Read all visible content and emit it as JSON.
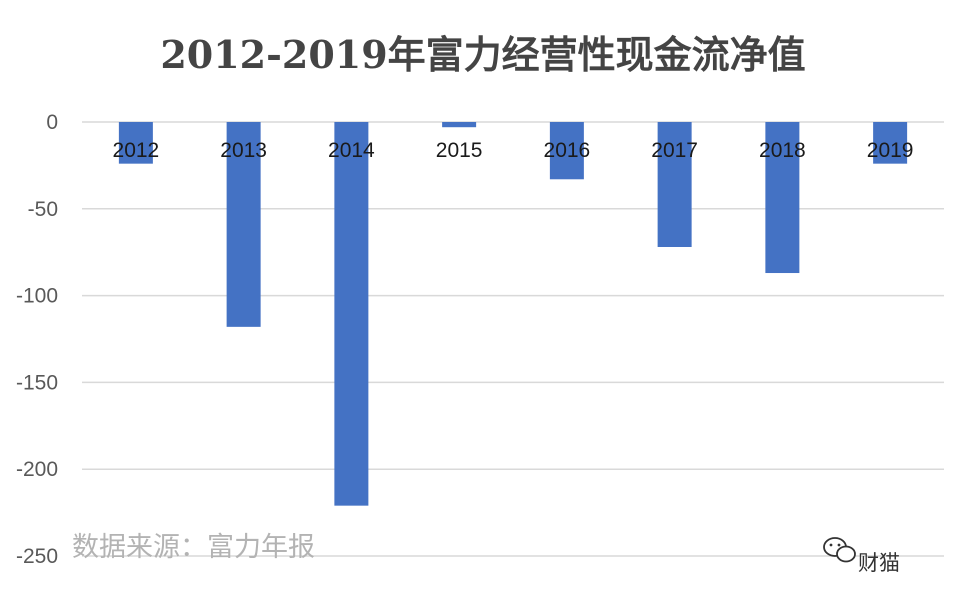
{
  "chart_data": {
    "type": "bar",
    "title": "2012-2019年富力经营性现金流净值",
    "categories": [
      "2012",
      "2013",
      "2014",
      "2015",
      "2016",
      "2017",
      "2018",
      "2019"
    ],
    "values": [
      -24,
      -118,
      -221,
      -3,
      -33,
      -72,
      -87,
      -24
    ],
    "ylim": [
      -250,
      0
    ],
    "yticks": [
      0,
      -50,
      -100,
      -150,
      -200,
      -250
    ],
    "xlabel": "",
    "ylabel": "",
    "grid": true,
    "bar_color": "#4472c4"
  },
  "source_note": "数据来源：富力年报",
  "watermark": "财猫"
}
